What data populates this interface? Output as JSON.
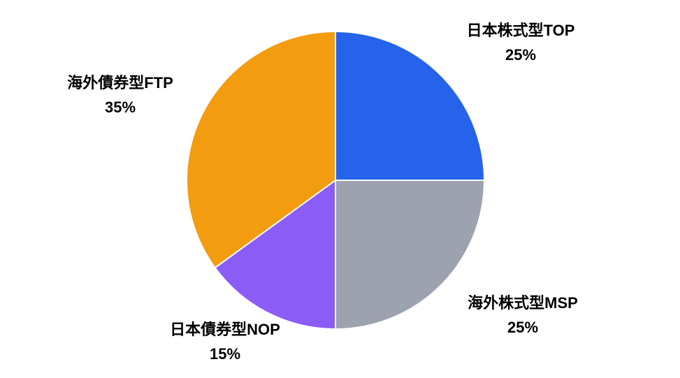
{
  "chart_data": {
    "type": "pie",
    "categories": [
      "日本株式型TOP",
      "海外株式型MSP",
      "日本債券型NOP",
      "海外債券型FTP"
    ],
    "values": [
      25,
      25,
      15,
      35
    ],
    "value_labels": [
      "25%",
      "25%",
      "15%",
      "35%"
    ],
    "colors": [
      "#2563eb",
      "#9ca3af",
      "#8b5cf6",
      "#f39c0f"
    ]
  }
}
